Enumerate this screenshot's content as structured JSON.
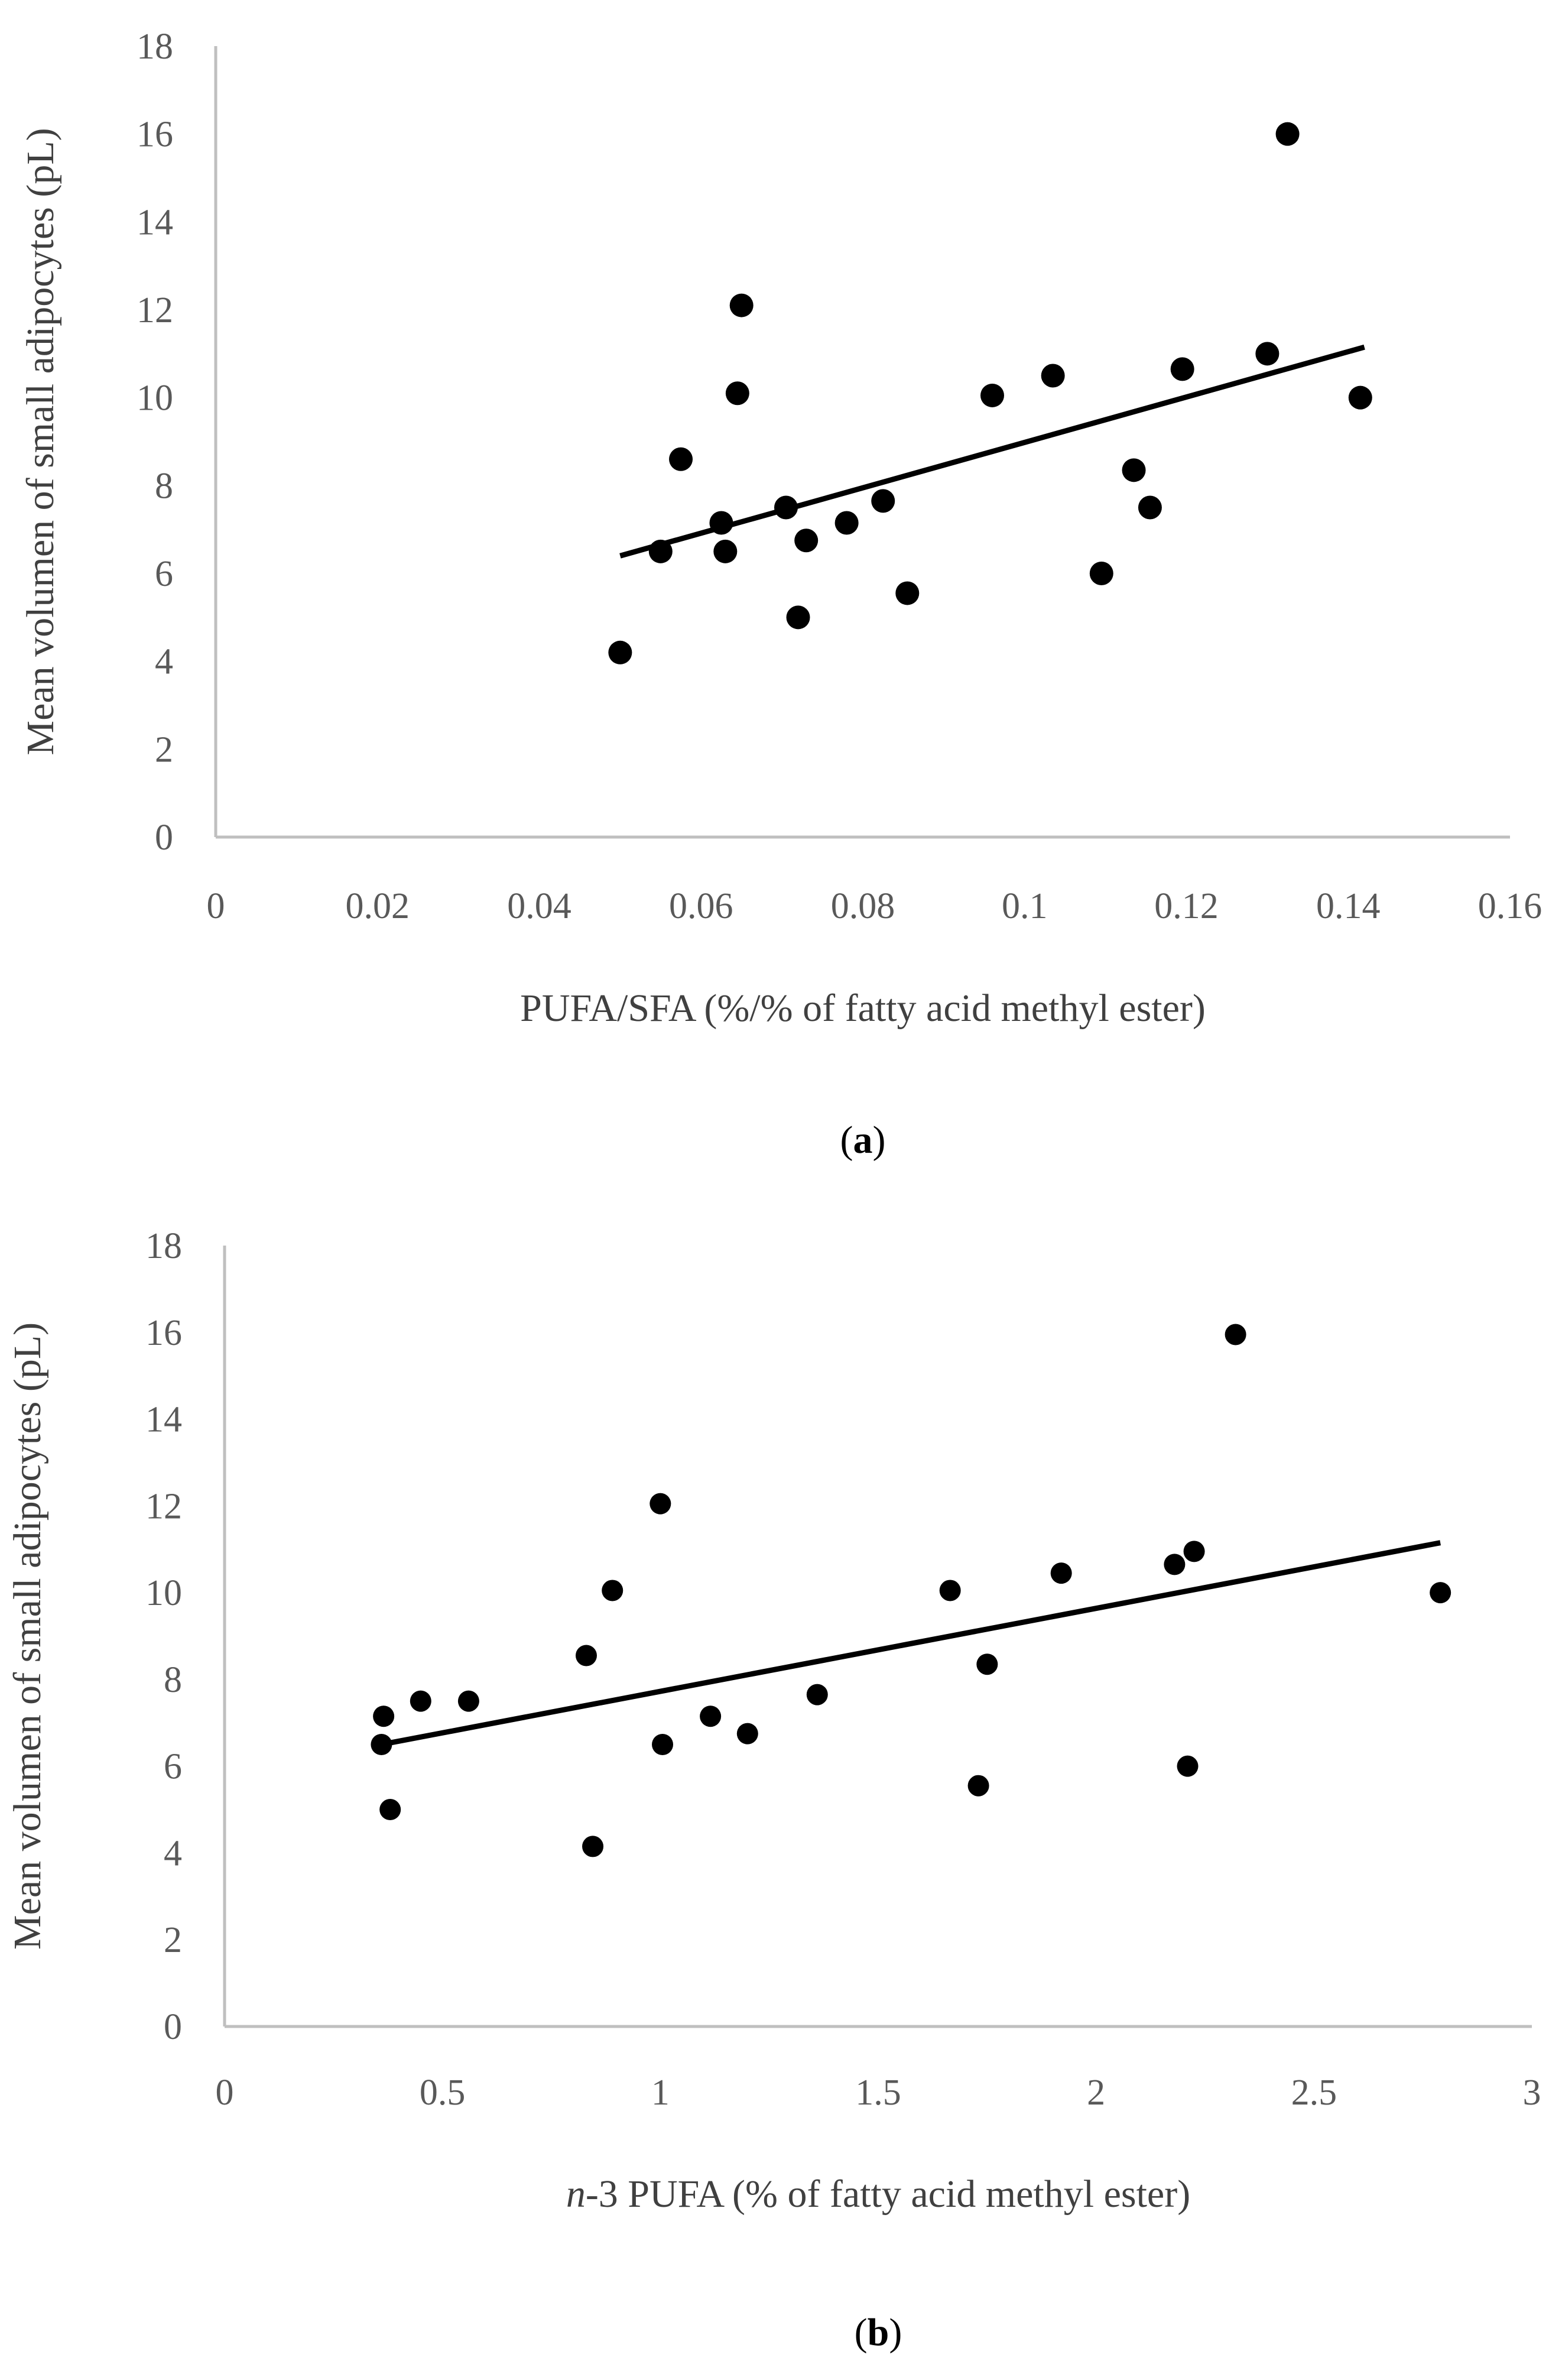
{
  "chart_data": [
    {
      "type": "scatter",
      "panel_label": "a",
      "xlabel": "PUFA/SFA (%/% of fatty acid methyl ester)",
      "ylabel": "Mean volumen of small adipocytes (pL)",
      "xlim": [
        0,
        0.16
      ],
      "ylim": [
        0,
        18
      ],
      "x_ticks": [
        "0",
        "0.02",
        "0.04",
        "0.06",
        "0.08",
        "0.1",
        "0.12",
        "0.14",
        "0.16"
      ],
      "y_ticks": [
        "0",
        "2",
        "4",
        "6",
        "8",
        "10",
        "12",
        "14",
        "16",
        "18"
      ],
      "grid": false,
      "legend": "none",
      "marker_color": "#000000",
      "trendline": {
        "type": "linear",
        "x": [
          0.05,
          0.142
        ],
        "y": [
          6.4,
          11.15
        ]
      },
      "points": [
        {
          "x": 0.05,
          "y": 4.2
        },
        {
          "x": 0.055,
          "y": 6.5
        },
        {
          "x": 0.0575,
          "y": 8.6
        },
        {
          "x": 0.0625,
          "y": 7.15
        },
        {
          "x": 0.063,
          "y": 6.5
        },
        {
          "x": 0.0645,
          "y": 10.1
        },
        {
          "x": 0.065,
          "y": 12.1
        },
        {
          "x": 0.0705,
          "y": 7.5
        },
        {
          "x": 0.072,
          "y": 5.0
        },
        {
          "x": 0.073,
          "y": 6.75
        },
        {
          "x": 0.078,
          "y": 7.15
        },
        {
          "x": 0.0825,
          "y": 7.65
        },
        {
          "x": 0.0855,
          "y": 5.55
        },
        {
          "x": 0.096,
          "y": 10.05
        },
        {
          "x": 0.1035,
          "y": 10.5
        },
        {
          "x": 0.1095,
          "y": 6.0
        },
        {
          "x": 0.1135,
          "y": 8.35
        },
        {
          "x": 0.1155,
          "y": 7.5
        },
        {
          "x": 0.1195,
          "y": 10.65
        },
        {
          "x": 0.13,
          "y": 11.0
        },
        {
          "x": 0.1325,
          "y": 16.0
        },
        {
          "x": 0.1415,
          "y": 10.0
        }
      ]
    },
    {
      "type": "scatter",
      "panel_label": "b",
      "xlabel_italic_prefix": "n",
      "xlabel_rest": "-3 PUFA (% of fatty acid methyl ester)",
      "ylabel": "Mean volumen of small adipocytes (pL)",
      "xlim": [
        0,
        3
      ],
      "ylim": [
        0,
        18
      ],
      "x_ticks": [
        "0",
        "0.5",
        "1",
        "1.5",
        "2",
        "2.5",
        "3"
      ],
      "y_ticks": [
        "0",
        "2",
        "4",
        "6",
        "8",
        "10",
        "12",
        "14",
        "16",
        "18"
      ],
      "grid": false,
      "legend": "none",
      "marker_color": "#000000",
      "trendline": {
        "type": "linear",
        "x": [
          0.36,
          2.79
        ],
        "y": [
          6.5,
          11.15
        ]
      },
      "points": [
        {
          "x": 0.36,
          "y": 6.5
        },
        {
          "x": 0.365,
          "y": 7.15
        },
        {
          "x": 0.38,
          "y": 5.0
        },
        {
          "x": 0.45,
          "y": 7.5
        },
        {
          "x": 0.56,
          "y": 7.5
        },
        {
          "x": 0.83,
          "y": 8.55
        },
        {
          "x": 0.845,
          "y": 4.15
        },
        {
          "x": 0.89,
          "y": 10.05
        },
        {
          "x": 1.0,
          "y": 12.05
        },
        {
          "x": 1.005,
          "y": 6.5
        },
        {
          "x": 1.115,
          "y": 7.15
        },
        {
          "x": 1.2,
          "y": 6.75
        },
        {
          "x": 1.36,
          "y": 7.65
        },
        {
          "x": 1.665,
          "y": 10.05
        },
        {
          "x": 1.73,
          "y": 5.55
        },
        {
          "x": 1.75,
          "y": 8.35
        },
        {
          "x": 1.92,
          "y": 10.45
        },
        {
          "x": 2.18,
          "y": 10.65
        },
        {
          "x": 2.21,
          "y": 6.0
        },
        {
          "x": 2.225,
          "y": 10.95
        },
        {
          "x": 2.32,
          "y": 15.95
        },
        {
          "x": 2.79,
          "y": 10.0
        }
      ]
    }
  ]
}
